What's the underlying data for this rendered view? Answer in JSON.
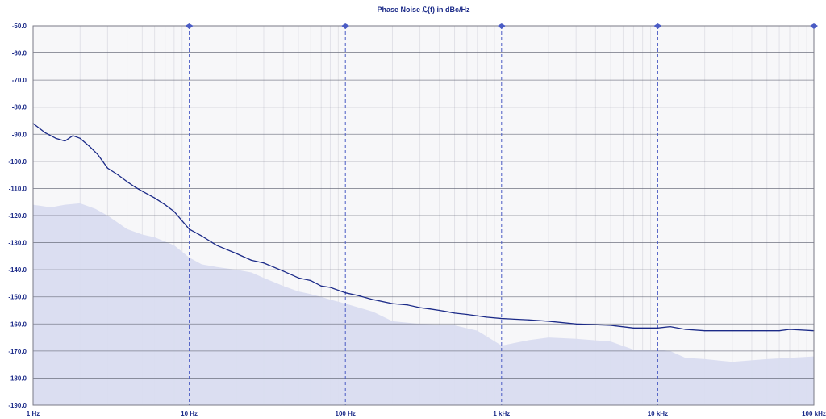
{
  "chart_data": {
    "type": "line",
    "title": "Phase Noise ℒ(f) in dBc/Hz",
    "xscale": "log",
    "xlim": [
      1,
      100000
    ],
    "ylim": [
      -190,
      -50
    ],
    "grid": true,
    "x_tick_labels": [
      "1 Hz",
      "10 Hz",
      "100 Hz",
      "1 kHz",
      "10 kHz",
      "100 kHz"
    ],
    "x_ticks": [
      1,
      10,
      100,
      1000,
      10000,
      100000
    ],
    "y_ticks": [
      -50,
      -60,
      -70,
      -80,
      -90,
      -100,
      -110,
      -120,
      -130,
      -140,
      -150,
      -160,
      -170,
      -180,
      -190
    ],
    "y_tick_labels": [
      "-50.0",
      "-60.0",
      "-70.0",
      "-80.0",
      "-90.0",
      "-100.0",
      "-110.0",
      "-120.0",
      "-130.0",
      "-140.0",
      "-150.0",
      "-160.0",
      "-170.0",
      "-180.0",
      "-190.0"
    ],
    "markers_x": [
      10,
      100,
      1000,
      10000,
      100000
    ],
    "colors": {
      "line": "#1b2a88",
      "area": "#d9dcf0",
      "grid": "#c9c9cf",
      "marker": "#4a5bc4",
      "background": "#f7f7f9"
    },
    "series": [
      {
        "type": "line",
        "x": [
          1,
          1.2,
          1.4,
          1.6,
          1.8,
          2,
          2.3,
          2.6,
          3,
          3.5,
          4,
          4.5,
          5,
          6,
          7,
          8,
          10,
          12,
          15,
          20,
          25,
          30,
          40,
          50,
          60,
          70,
          80,
          100,
          120,
          150,
          200,
          250,
          300,
          350,
          400,
          450,
          500,
          600,
          700,
          800,
          1000,
          1500,
          2000,
          3000,
          5000,
          7000,
          10000,
          12000,
          15000,
          20000,
          30000,
          50000,
          60000,
          70000,
          100000
        ],
        "y": [
          -86,
          -89.5,
          -91.5,
          -92.5,
          -90.5,
          -91.5,
          -94.5,
          -97.5,
          -102.5,
          -105,
          -107.5,
          -109.5,
          -111,
          -113.5,
          -116,
          -118.5,
          -125,
          -127.5,
          -131,
          -134,
          -136.5,
          -137.5,
          -140.5,
          -143,
          -144,
          -146,
          -146.5,
          -148.5,
          -149.5,
          -151,
          -152.5,
          -153,
          -154,
          -154.5,
          -155,
          -155.5,
          -156,
          -156.5,
          -157,
          -157.5,
          -158,
          -158.5,
          -159,
          -160,
          -160.5,
          -161.5,
          -161.5,
          -161,
          -162,
          -162.5,
          -162.5,
          -162.5,
          -162.5,
          -162,
          -162.5
        ]
      },
      {
        "type": "area",
        "x": [
          1,
          1.3,
          1.6,
          2,
          2.5,
          3,
          4,
          5,
          6,
          8,
          10,
          12,
          15,
          20,
          25,
          30,
          40,
          50,
          60,
          70,
          80,
          100,
          150,
          200,
          300,
          500,
          700,
          1000,
          1500,
          2000,
          3000,
          5000,
          7000,
          10000,
          12000,
          15000,
          20000,
          30000,
          50000,
          100000
        ],
        "y": [
          -116,
          -117,
          -116,
          -115.5,
          -117.5,
          -120,
          -125,
          -127,
          -128,
          -131,
          -135.5,
          -138,
          -139,
          -140,
          -141,
          -143,
          -146,
          -148,
          -149,
          -150,
          -151,
          -152.5,
          -155.5,
          -159,
          -160,
          -160.5,
          -162.5,
          -168,
          -166,
          -165,
          -165.5,
          -166.5,
          -169.5,
          -169.5,
          -170,
          -172.5,
          -173,
          -174,
          -173,
          -172
        ]
      }
    ]
  }
}
